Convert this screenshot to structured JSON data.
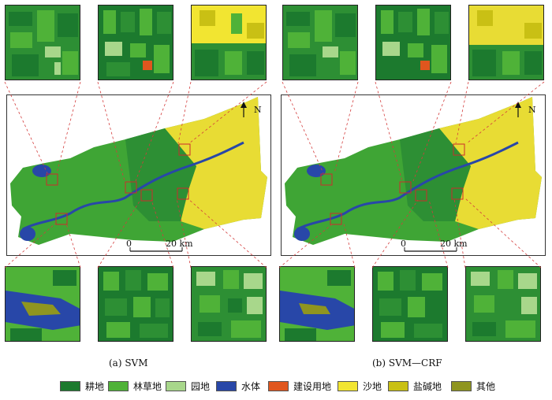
{
  "panels": [
    {
      "caption": "(a) SVM",
      "north_label": "N",
      "scale_start": "0",
      "scale_end": "20 km"
    },
    {
      "caption": "(b) SVM—CRF",
      "north_label": "N",
      "scale_start": "0",
      "scale_end": "20 km"
    }
  ],
  "legend": [
    {
      "label": "耕地",
      "color": "#1c7a2e"
    },
    {
      "label": "林草地",
      "color": "#4fb238"
    },
    {
      "label": "园地",
      "color": "#a8d78b"
    },
    {
      "label": "水体",
      "color": "#2847a8"
    },
    {
      "label": "建设用地",
      "color": "#e0561e"
    },
    {
      "label": "沙地",
      "color": "#f2e531"
    },
    {
      "label": "盐碱地",
      "color": "#c9c014"
    },
    {
      "label": "其他",
      "color": "#8f9520"
    }
  ],
  "colors": {
    "inset_box": "#cc2b2b",
    "leader_line": "#d43c3c"
  }
}
